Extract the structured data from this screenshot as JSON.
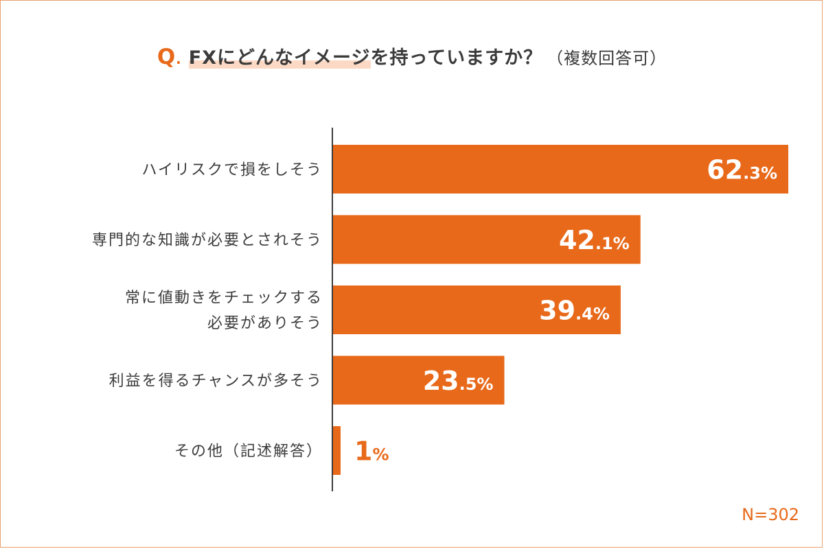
{
  "title": {
    "q": "Q",
    "q_dot": ".",
    "highlight_1": "FX",
    "highlight_2": "にどんなイメージ",
    "rest": "を持っていますか？",
    "note": "（複数回答可）"
  },
  "sample_size": "N=302",
  "colors": {
    "bar": "#e8691a",
    "axis": "#3b3b3b",
    "text": "#3b3b3b",
    "highlight": "#fbd9c4"
  },
  "chart_data": {
    "type": "bar",
    "orientation": "horizontal",
    "categories": [
      [
        "ハイリスクで損をしそう"
      ],
      [
        "専門的な知識が必要とされそう"
      ],
      [
        "常に値動きをチェックする",
        "必要がありそう"
      ],
      [
        "利益を得るチャンスが多そう"
      ],
      [
        "その他（記述解答）"
      ]
    ],
    "values": [
      62.3,
      42.1,
      39.4,
      23.5,
      1
    ],
    "value_labels": [
      {
        "main": "62",
        "dec": ".3%"
      },
      {
        "main": "42",
        "dec": ".1%"
      },
      {
        "main": "39",
        "dec": ".4%"
      },
      {
        "main": "23",
        "dec": ".5%"
      },
      {
        "main": "1",
        "dec": "%"
      }
    ],
    "xlim": [
      0,
      62.3
    ],
    "grid": false,
    "legend": "none"
  }
}
